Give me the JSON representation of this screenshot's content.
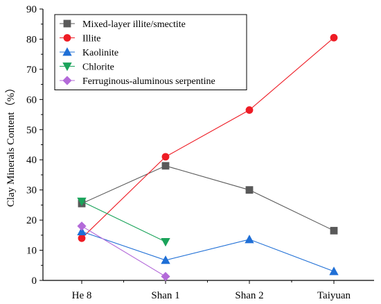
{
  "chart_data": {
    "type": "line",
    "title": "",
    "xlabel": "",
    "ylabel": "Clay Minerals Content（%）",
    "categories": [
      "He 8",
      "Shan 1",
      "Shan 2",
      "Taiyuan"
    ],
    "ylim": [
      0,
      90
    ],
    "yticks": [
      0,
      10,
      20,
      30,
      40,
      50,
      60,
      70,
      80,
      90
    ],
    "grid": false,
    "legend_position": "top-left",
    "series": [
      {
        "name": "Mixed-layer illite/smectite",
        "color": "#595959",
        "marker": "square",
        "values": [
          25.5,
          38,
          30,
          16.5
        ]
      },
      {
        "name": "Illite",
        "color": "#ee1c25",
        "marker": "circle",
        "values": [
          14,
          41,
          56.5,
          80.5
        ]
      },
      {
        "name": "Kaolinite",
        "color": "#1f6fd6",
        "marker": "triangle-up",
        "values": [
          16.2,
          6.7,
          13.6,
          3
        ]
      },
      {
        "name": "Chlorite",
        "color": "#1aa35a",
        "marker": "triangle-down",
        "values": [
          26.2,
          12.8,
          null,
          null
        ]
      },
      {
        "name": "Ferruginous-aluminous serpentine",
        "color": "#b36ad9",
        "marker": "diamond",
        "values": [
          18,
          1.3,
          null,
          null
        ]
      }
    ]
  }
}
